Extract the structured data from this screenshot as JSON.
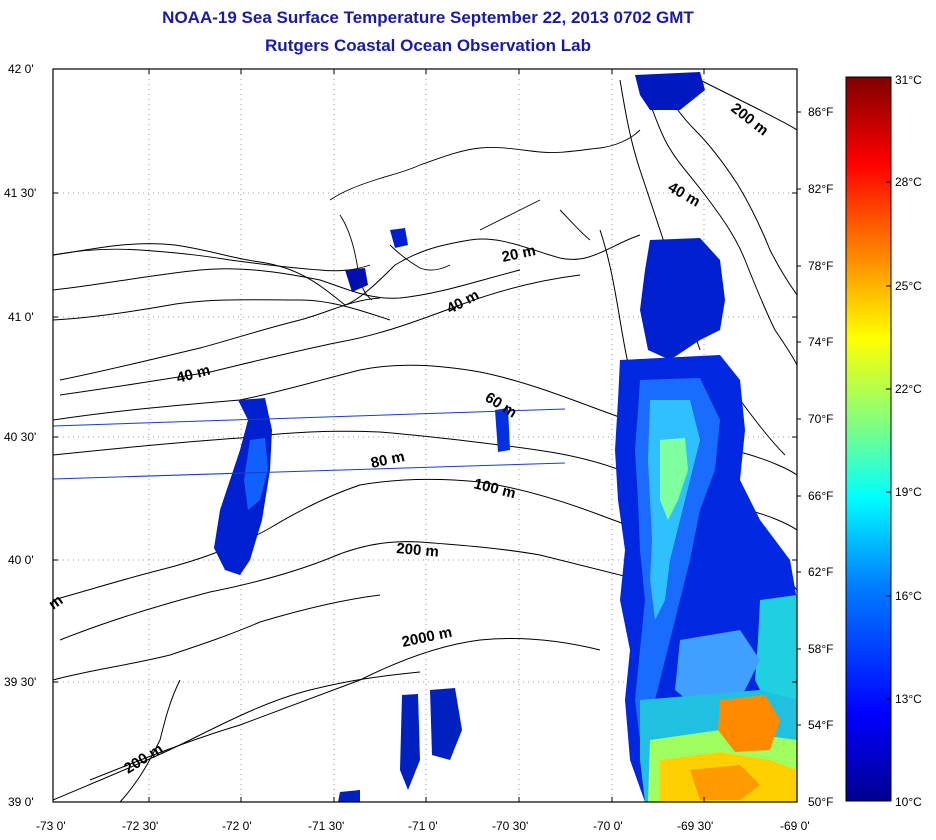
{
  "header": {
    "title": "NOAA-19 Sea Surface Temperature September 22, 2013 0702 GMT",
    "subtitle": "Rutgers Coastal Ocean Observation Lab"
  },
  "map": {
    "lat_ticks": [
      "42 0'",
      "41 30'",
      "41 0'",
      "40 30'",
      "40 0'",
      "39 30'",
      "39 0'"
    ],
    "lon_ticks": [
      "-73 0'",
      "-72 30'",
      "-72 0'",
      "-71 30'",
      "-71 0'",
      "-70 30'",
      "-70 0'",
      "-69 30'",
      "-69 0'"
    ],
    "f_ticks": [
      "86°F",
      "82°F",
      "78°F",
      "74°F",
      "70°F",
      "66°F",
      "62°F",
      "58°F",
      "54°F",
      "50°F"
    ],
    "contour_labels": [
      "200 m",
      "40 m",
      "20 m",
      "40 m",
      "40 m",
      "60 m",
      "80 m",
      "100 m",
      "200 m",
      "2000 m",
      "200 m",
      "m"
    ],
    "colorbar": {
      "c_ticks": [
        "31°C",
        "28°C",
        "25°C",
        "22°C",
        "19°C",
        "16°C",
        "13°C",
        "10°C"
      ],
      "colors": [
        "#00008f",
        "#0000ff",
        "#0080ff",
        "#00ffff",
        "#80ff80",
        "#ffff00",
        "#ff8000",
        "#ff0000",
        "#800000"
      ]
    }
  }
}
